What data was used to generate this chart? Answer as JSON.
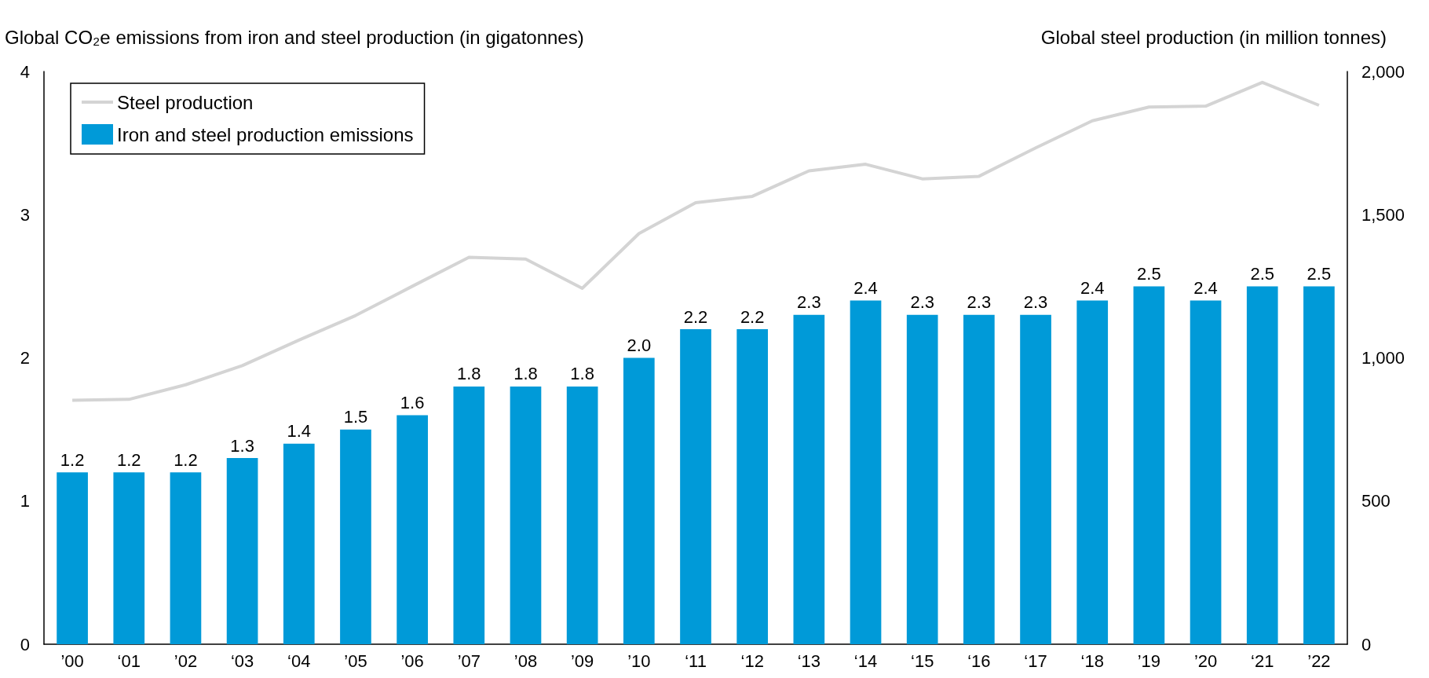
{
  "chart_data": {
    "type": "bar",
    "ylabel": "Global CO₂e emissions from iron and steel production (in gigatonnes)",
    "y2label": "Global steel production (in million tonnes)",
    "categories": [
      "’00",
      "‘01",
      "’02",
      "‘03",
      "‘04",
      "’05",
      "’06",
      "’07",
      "’08",
      "’09",
      "’10",
      "‘11",
      "‘12",
      "‘13",
      "‘14",
      "‘15",
      "‘16",
      "‘17",
      "‘18",
      "’19",
      "’20",
      "‘21",
      "’22"
    ],
    "series": [
      {
        "name": "Iron and steel production emissions",
        "color": "#009ad8",
        "values": [
          1.2,
          1.2,
          1.2,
          1.3,
          1.4,
          1.5,
          1.6,
          1.8,
          1.8,
          1.8,
          2.0,
          2.2,
          2.2,
          2.3,
          2.4,
          2.3,
          2.3,
          2.3,
          2.4,
          2.5,
          2.4,
          2.5,
          2.5
        ],
        "value_labels": [
          "1.2",
          "1.2",
          "1.2",
          "1.3",
          "1.4",
          "1.5",
          "1.6",
          "1.8",
          "1.8",
          "1.8",
          "2.0",
          "2.2",
          "2.2",
          "2.3",
          "2.4",
          "2.3",
          "2.3",
          "2.3",
          "2.4",
          "2.5",
          "2.4",
          "2.5",
          "2.5"
        ]
      },
      {
        "type": "line",
        "axis": "y2",
        "name": "Steel production",
        "color": "#d4d4d4",
        "marker": "none",
        "values": [
          852,
          855,
          906,
          973,
          1062,
          1148,
          1250,
          1351,
          1345,
          1243,
          1434,
          1542,
          1564,
          1653,
          1676,
          1625,
          1634,
          1733,
          1828,
          1876,
          1879,
          1962,
          1882
        ]
      }
    ],
    "ylim": [
      0,
      4
    ],
    "yticks": [
      0,
      1,
      2,
      3,
      4
    ],
    "y2lim": [
      0,
      2000
    ],
    "y2ticks": [
      0,
      500,
      {
        "value": 1000,
        "label": "1,000"
      },
      {
        "value": 1500,
        "label": "1,500"
      },
      {
        "value": 2000,
        "label": "2,000"
      }
    ],
    "grid": false,
    "legend": "top left"
  }
}
